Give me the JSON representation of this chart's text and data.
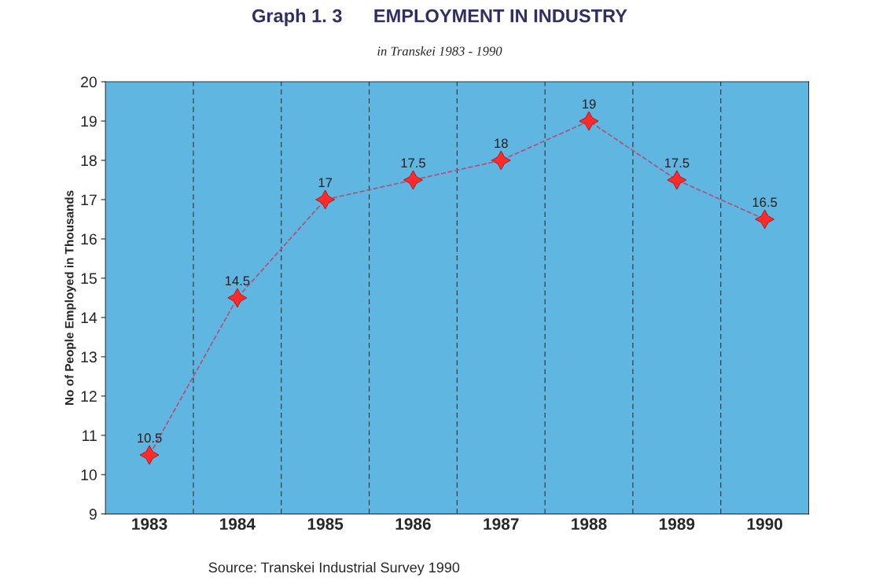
{
  "chart_data": {
    "type": "line",
    "title": "Graph 1. 3      EMPLOYMENT IN INDUSTRY",
    "subtitle": "in Transkei 1983 - 1990",
    "ylabel": "No of People Employed in Thousands",
    "categories": [
      "1983",
      "1984",
      "1985",
      "1986",
      "1987",
      "1988",
      "1989",
      "1990"
    ],
    "series": [
      {
        "color": "#b0507a",
        "values": [
          10.5,
          14.5,
          17,
          17.5,
          18,
          19,
          17.5,
          16.5
        ]
      }
    ],
    "ylim": [
      9,
      20
    ],
    "yticks": [
      9,
      10,
      11,
      12,
      13,
      14,
      15,
      16,
      17,
      18,
      19,
      20
    ],
    "grid": "x",
    "legend": false,
    "marker": "star",
    "line_style": "dashed",
    "data_labels": true,
    "annotations": [
      "Source: Transkei Industrial Survey 1990"
    ]
  }
}
